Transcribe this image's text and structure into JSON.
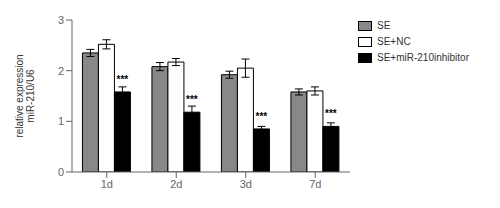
{
  "chart_data": {
    "type": "bar",
    "categories": [
      "1d",
      "2d",
      "3d",
      "7d"
    ],
    "series": [
      {
        "name": "SE",
        "color": "#888888",
        "values": [
          2.35,
          2.08,
          1.92,
          1.58
        ],
        "errors": [
          0.07,
          0.08,
          0.07,
          0.06
        ]
      },
      {
        "name": "SE+NC",
        "color": "#ffffff",
        "values": [
          2.52,
          2.17,
          2.05,
          1.6
        ],
        "errors": [
          0.09,
          0.07,
          0.18,
          0.08
        ]
      },
      {
        "name": "SE+miR-210inhibitor",
        "color": "#000000",
        "values": [
          1.58,
          1.18,
          0.85,
          0.9
        ],
        "errors": [
          0.1,
          0.12,
          0.05,
          0.07
        ]
      }
    ],
    "ylabel": "relative expression\nmiR-210/U6",
    "ylim": [
      0,
      3.0
    ],
    "yticks": [
      0,
      1,
      2,
      3
    ],
    "grid": false,
    "legend": "right",
    "annotations": [
      {
        "text": "***",
        "category": "1d",
        "series": "SE+miR-210inhibitor"
      },
      {
        "text": "***",
        "category": "2d",
        "series": "SE+miR-210inhibitor"
      },
      {
        "text": "***",
        "category": "3d",
        "series": "SE+miR-210inhibitor"
      },
      {
        "text": "***",
        "category": "7d",
        "series": "SE+miR-210inhibitor"
      }
    ]
  }
}
